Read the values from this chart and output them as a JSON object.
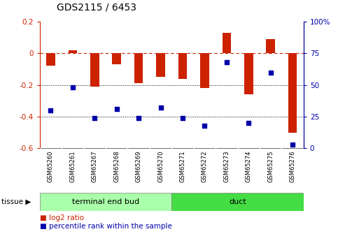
{
  "title": "GDS2115 / 6453",
  "samples": [
    "GSM65260",
    "GSM65261",
    "GSM65267",
    "GSM65268",
    "GSM65269",
    "GSM65270",
    "GSM65271",
    "GSM65272",
    "GSM65273",
    "GSM65274",
    "GSM65275",
    "GSM65276"
  ],
  "log2_ratio": [
    -0.08,
    0.02,
    -0.21,
    -0.07,
    -0.19,
    -0.15,
    -0.16,
    -0.22,
    0.13,
    -0.26,
    0.09,
    -0.5
  ],
  "percentile": [
    30,
    48,
    24,
    31,
    24,
    32,
    24,
    18,
    68,
    20,
    60,
    3
  ],
  "tissue_groups": [
    {
      "label": "terminal end bud",
      "start": 0,
      "end": 6,
      "color": "#aaffaa"
    },
    {
      "label": "duct",
      "start": 6,
      "end": 12,
      "color": "#44dd44"
    }
  ],
  "bar_color": "#cc2200",
  "scatter_color": "#0000aa",
  "ylim_left": [
    -0.6,
    0.2
  ],
  "ylim_right": [
    0,
    100
  ],
  "yticks_left": [
    -0.6,
    -0.4,
    -0.2,
    0.0,
    0.2
  ],
  "yticks_right": [
    0,
    25,
    50,
    75,
    100
  ],
  "hline_y": 0.0,
  "dotted_lines": [
    -0.2,
    -0.4
  ],
  "right_tick_labels": [
    "0",
    "25",
    "50",
    "75",
    "100%"
  ],
  "legend_log2_label": "log2 ratio",
  "legend_pct_label": "percentile rank within the sample",
  "tissue_label": "tissue",
  "background_color": "#ffffff",
  "label_box_color": "#cccccc",
  "bar_width": 0.4
}
